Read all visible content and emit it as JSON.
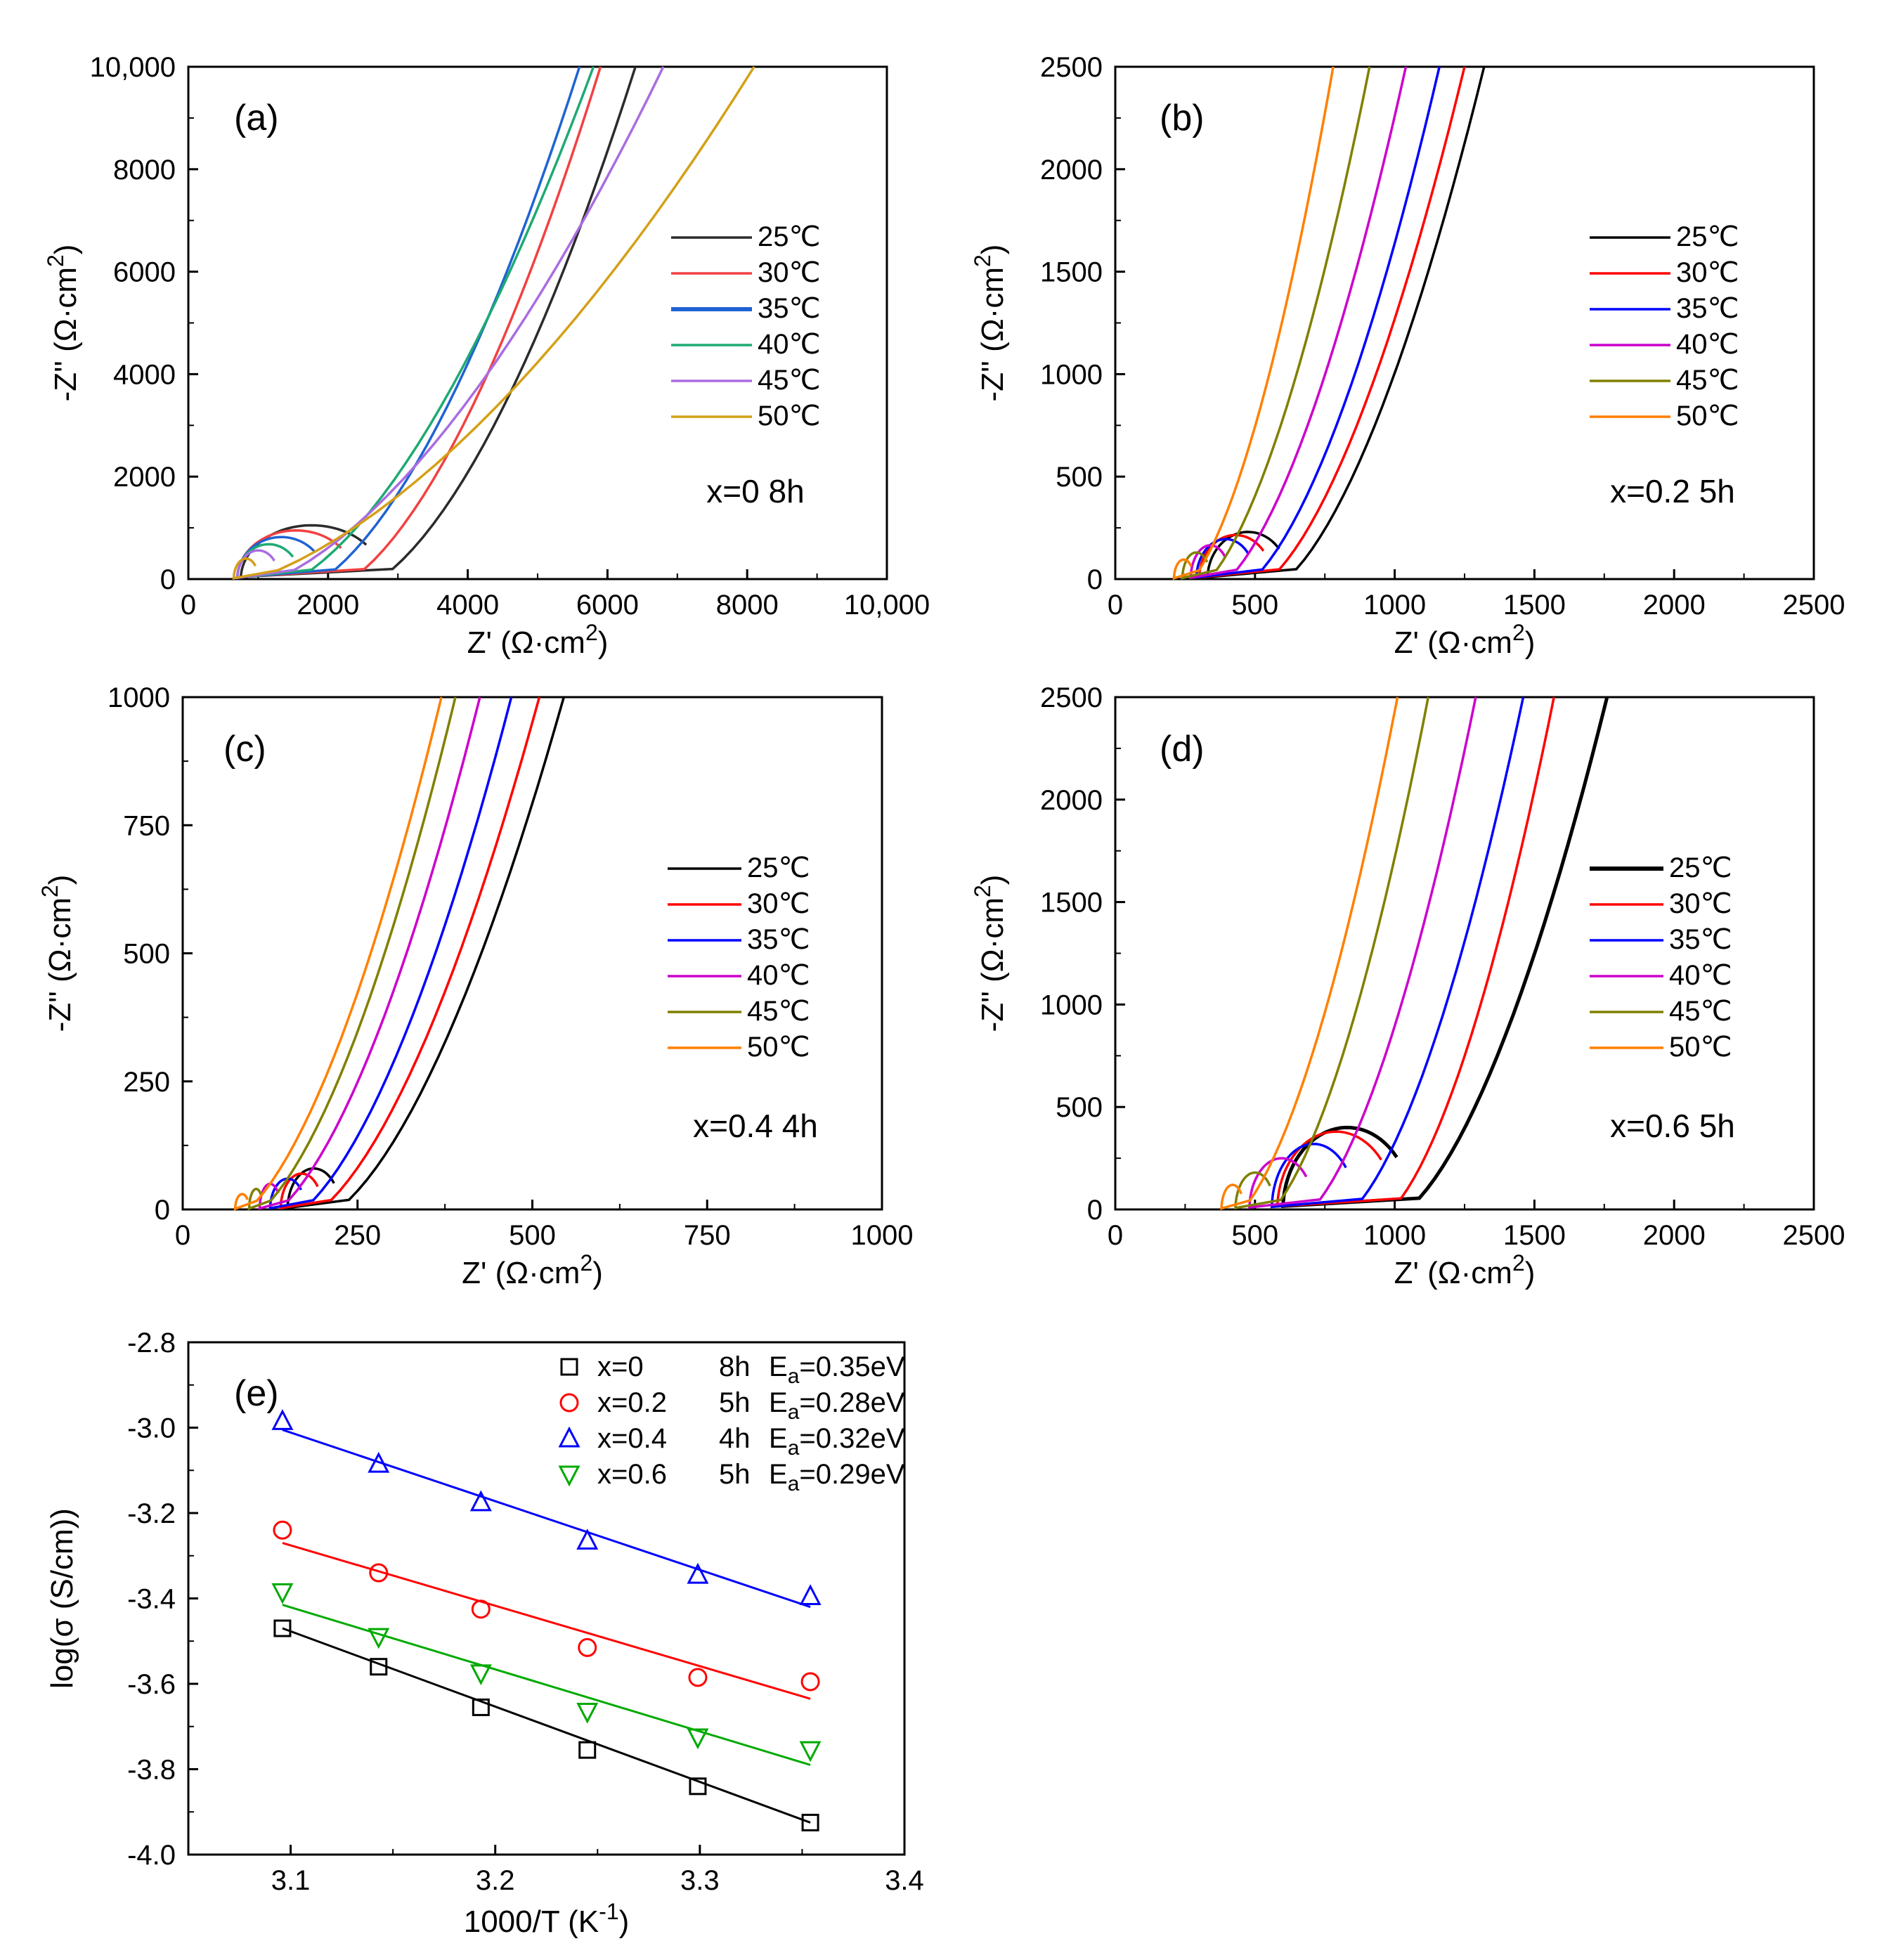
{
  "legend_temps": [
    "25℃",
    "30℃",
    "35℃",
    "40℃",
    "45℃",
    "50℃"
  ],
  "temp_colors": [
    "#2b2b2b",
    "#f24141",
    "#1f63d4",
    "#1eaa73",
    "#a96de0",
    "#d4a017"
  ],
  "temp_colors_bright": [
    "#000000",
    "#ff0000",
    "#0000ff",
    "#cc00cc",
    "#808000",
    "#ff8000"
  ],
  "chart_data": [
    {
      "type": "line",
      "panel": "(a)",
      "annotation": "x=0 8h",
      "xlabel": "Z' (Ω·cm",
      "ylabel": "-Z'' (Ω·cm",
      "label_sup": "2",
      "xlim": [
        0,
        10000
      ],
      "ylim": [
        0,
        10000
      ],
      "xticks": [
        0,
        2000,
        4000,
        6000,
        8000,
        10000
      ],
      "yticks": [
        0,
        2000,
        4000,
        6000,
        8000,
        10000
      ],
      "xtick_labels": [
        "0",
        "2000",
        "4000",
        "6000",
        "8000",
        "10,000"
      ],
      "ytick_labels": [
        "0",
        "2000",
        "4000",
        "6000",
        "8000",
        "10,000"
      ],
      "legend_position": "right-middle",
      "series": [
        {
          "name": "25℃",
          "arc_start": 750,
          "arc_end": 2780,
          "arc_height": 1050,
          "tail_end": [
            6400,
            10000
          ]
        },
        {
          "name": "30℃",
          "arc_start": 700,
          "arc_end": 2380,
          "arc_height": 950,
          "tail_end": [
            5900,
            10000
          ]
        },
        {
          "name": "35℃",
          "arc_start": 700,
          "arc_end": 1960,
          "arc_height": 820,
          "tail_end": [
            5600,
            10000
          ]
        },
        {
          "name": "40℃",
          "arc_start": 700,
          "arc_end": 1600,
          "arc_height": 680,
          "tail_end": [
            5800,
            10000
          ]
        },
        {
          "name": "45℃",
          "arc_start": 700,
          "arc_end": 1300,
          "arc_height": 560,
          "tail_end": [
            6800,
            10000
          ]
        },
        {
          "name": "50℃",
          "arc_start": 650,
          "arc_end": 1000,
          "arc_height": 400,
          "tail_end": [
            8100,
            10000
          ]
        }
      ]
    },
    {
      "type": "line",
      "panel": "(b)",
      "annotation": "x=0.2 5h",
      "xlabel": "Z' (Ω·cm",
      "ylabel": "-Z'' (Ω·cm",
      "label_sup": "2",
      "xlim": [
        0,
        2500
      ],
      "ylim": [
        0,
        2500
      ],
      "xticks": [
        0,
        500,
        1000,
        1500,
        2000,
        2500
      ],
      "yticks": [
        0,
        500,
        1000,
        1500,
        2000,
        2500
      ],
      "xtick_labels": [
        "0",
        "500",
        "1000",
        "1500",
        "2000",
        "2500"
      ],
      "ytick_labels": [
        "0",
        "500",
        "1000",
        "1500",
        "2000",
        "2500"
      ],
      "legend_position": "right-middle",
      "series": [
        {
          "name": "25℃",
          "arc_start": 330,
          "arc_end": 620,
          "arc_height": 230,
          "tail_end": [
            1320,
            2500
          ]
        },
        {
          "name": "30℃",
          "arc_start": 300,
          "arc_end": 560,
          "arc_height": 215,
          "tail_end": [
            1250,
            2500
          ]
        },
        {
          "name": "35℃",
          "arc_start": 290,
          "arc_end": 500,
          "arc_height": 195,
          "tail_end": [
            1160,
            2500
          ]
        },
        {
          "name": "40℃",
          "arc_start": 270,
          "arc_end": 410,
          "arc_height": 165,
          "tail_end": [
            1040,
            2500
          ]
        },
        {
          "name": "45℃",
          "arc_start": 240,
          "arc_end": 340,
          "arc_height": 130,
          "tail_end": [
            910,
            2500
          ]
        },
        {
          "name": "50℃",
          "arc_start": 210,
          "arc_end": 280,
          "arc_height": 95,
          "tail_end": [
            780,
            2500
          ]
        }
      ]
    },
    {
      "type": "line",
      "panel": "(c)",
      "annotation": "x=0.4 4h",
      "xlabel": "Z' (Ω·cm",
      "ylabel": "-Z'' (Ω·cm",
      "label_sup": "2",
      "xlim": [
        0,
        1000
      ],
      "ylim": [
        0,
        1000
      ],
      "xticks": [
        0,
        250,
        500,
        750,
        1000
      ],
      "yticks": [
        0,
        250,
        500,
        750,
        1000
      ],
      "xtick_labels": [
        "0",
        "250",
        "500",
        "750",
        "1000"
      ],
      "ytick_labels": [
        "0",
        "250",
        "500",
        "750",
        "1000"
      ],
      "legend_position": "right-middle",
      "series": [
        {
          "name": "25℃",
          "arc_start": 150,
          "arc_end": 225,
          "arc_height": 80,
          "tail_end": [
            545,
            1000
          ]
        },
        {
          "name": "30℃",
          "arc_start": 140,
          "arc_end": 200,
          "arc_height": 70,
          "tail_end": [
            510,
            1000
          ]
        },
        {
          "name": "35℃",
          "arc_start": 125,
          "arc_end": 175,
          "arc_height": 60,
          "tail_end": [
            470,
            1000
          ]
        },
        {
          "name": "40℃",
          "arc_start": 110,
          "arc_end": 140,
          "arc_height": 50,
          "tail_end": [
            425,
            1000
          ]
        },
        {
          "name": "45℃",
          "arc_start": 95,
          "arc_end": 115,
          "arc_height": 40,
          "tail_end": [
            390,
            1000
          ]
        },
        {
          "name": "50℃",
          "arc_start": 75,
          "arc_end": 95,
          "arc_height": 30,
          "tail_end": [
            370,
            1000
          ]
        }
      ]
    },
    {
      "type": "line",
      "panel": "(d)",
      "annotation": "x=0.6 5h",
      "xlabel": "Z' (Ω·cm",
      "ylabel": "-Z'' (Ω·cm",
      "label_sup": "2",
      "xlim": [
        0,
        2500
      ],
      "ylim": [
        0,
        2500
      ],
      "xticks": [
        0,
        500,
        1000,
        1500,
        2000,
        2500
      ],
      "yticks": [
        0,
        500,
        1000,
        1500,
        2000,
        2500
      ],
      "xtick_labels": [
        "0",
        "500",
        "1000",
        "1500",
        "2000",
        "2500"
      ],
      "ytick_labels": [
        "0",
        "500",
        "1000",
        "1500",
        "2000",
        "2500"
      ],
      "legend_position": "right-middle",
      "series": [
        {
          "name": "25℃",
          "arc_start": 600,
          "arc_end": 1060,
          "arc_height": 400,
          "tail_end": [
            1760,
            2500
          ]
        },
        {
          "name": "30℃",
          "arc_start": 580,
          "arc_end": 1000,
          "arc_height": 380,
          "tail_end": [
            1570,
            2500
          ]
        },
        {
          "name": "35℃",
          "arc_start": 560,
          "arc_end": 860,
          "arc_height": 320,
          "tail_end": [
            1460,
            2500
          ]
        },
        {
          "name": "40℃",
          "arc_start": 480,
          "arc_end": 710,
          "arc_height": 250,
          "tail_end": [
            1290,
            2500
          ]
        },
        {
          "name": "45℃",
          "arc_start": 430,
          "arc_end": 570,
          "arc_height": 180,
          "tail_end": [
            1120,
            2500
          ]
        },
        {
          "name": "50℃",
          "arc_start": 380,
          "arc_end": 460,
          "arc_height": 120,
          "tail_end": [
            1010,
            2500
          ]
        }
      ]
    },
    {
      "type": "scatter",
      "panel": "(e)",
      "xlabel": "1000/T (K",
      "xlabel_sup": "-1",
      "xlabel_tail": ")",
      "ylabel": "log(σ (S/cm))",
      "xlim": [
        3.05,
        3.4
      ],
      "ylim": [
        -4.0,
        -2.8
      ],
      "xticks": [
        3.1,
        3.2,
        3.3,
        3.4
      ],
      "yticks": [
        -4.0,
        -3.8,
        -3.6,
        -3.4,
        -3.2,
        -3.0,
        -2.8
      ],
      "xtick_labels": [
        "3.1",
        "3.2",
        "3.3",
        "3.4"
      ],
      "ytick_labels": [
        "-4.0",
        "-3.8",
        "-3.6",
        "-3.4",
        "-3.2",
        "-3.0",
        "-2.8"
      ],
      "legend_position": "top-right",
      "x": [
        3.096,
        3.143,
        3.193,
        3.245,
        3.299,
        3.354
      ],
      "series": [
        {
          "label_x": "x=0",
          "label_t": "8h",
          "ea_prefix": "E",
          "ea_sub": "a",
          "ea_value": "=0.35eV",
          "marker": "square",
          "color": "#000000",
          "values": [
            -3.47,
            -3.56,
            -3.655,
            -3.755,
            -3.84,
            -3.925
          ],
          "fit": [
            -3.47,
            -3.925
          ]
        },
        {
          "label_x": "x=0.2",
          "label_t": "5h",
          "ea_prefix": "E",
          "ea_sub": "a",
          "ea_value": "=0.28eV",
          "marker": "circle",
          "color": "#ff0000",
          "values": [
            -3.24,
            -3.34,
            -3.425,
            -3.515,
            -3.585,
            -3.595
          ],
          "fit": [
            -3.27,
            -3.635
          ]
        },
        {
          "label_x": "x=0.4",
          "label_t": "4h",
          "ea_prefix": "E",
          "ea_sub": "a",
          "ea_value": "=0.32eV",
          "marker": "triangle-up",
          "color": "#0000ff",
          "values": [
            -2.985,
            -3.085,
            -3.175,
            -3.265,
            -3.345,
            -3.395
          ],
          "fit": [
            -3.005,
            -3.42
          ]
        },
        {
          "label_x": "x=0.6",
          "label_t": "5h",
          "ea_prefix": "E",
          "ea_sub": "a",
          "ea_value": "=0.29eV",
          "marker": "triangle-down",
          "color": "#00aa00",
          "values": [
            -3.385,
            -3.49,
            -3.575,
            -3.665,
            -3.725,
            -3.755
          ],
          "fit": [
            -3.415,
            -3.79
          ]
        }
      ]
    }
  ]
}
